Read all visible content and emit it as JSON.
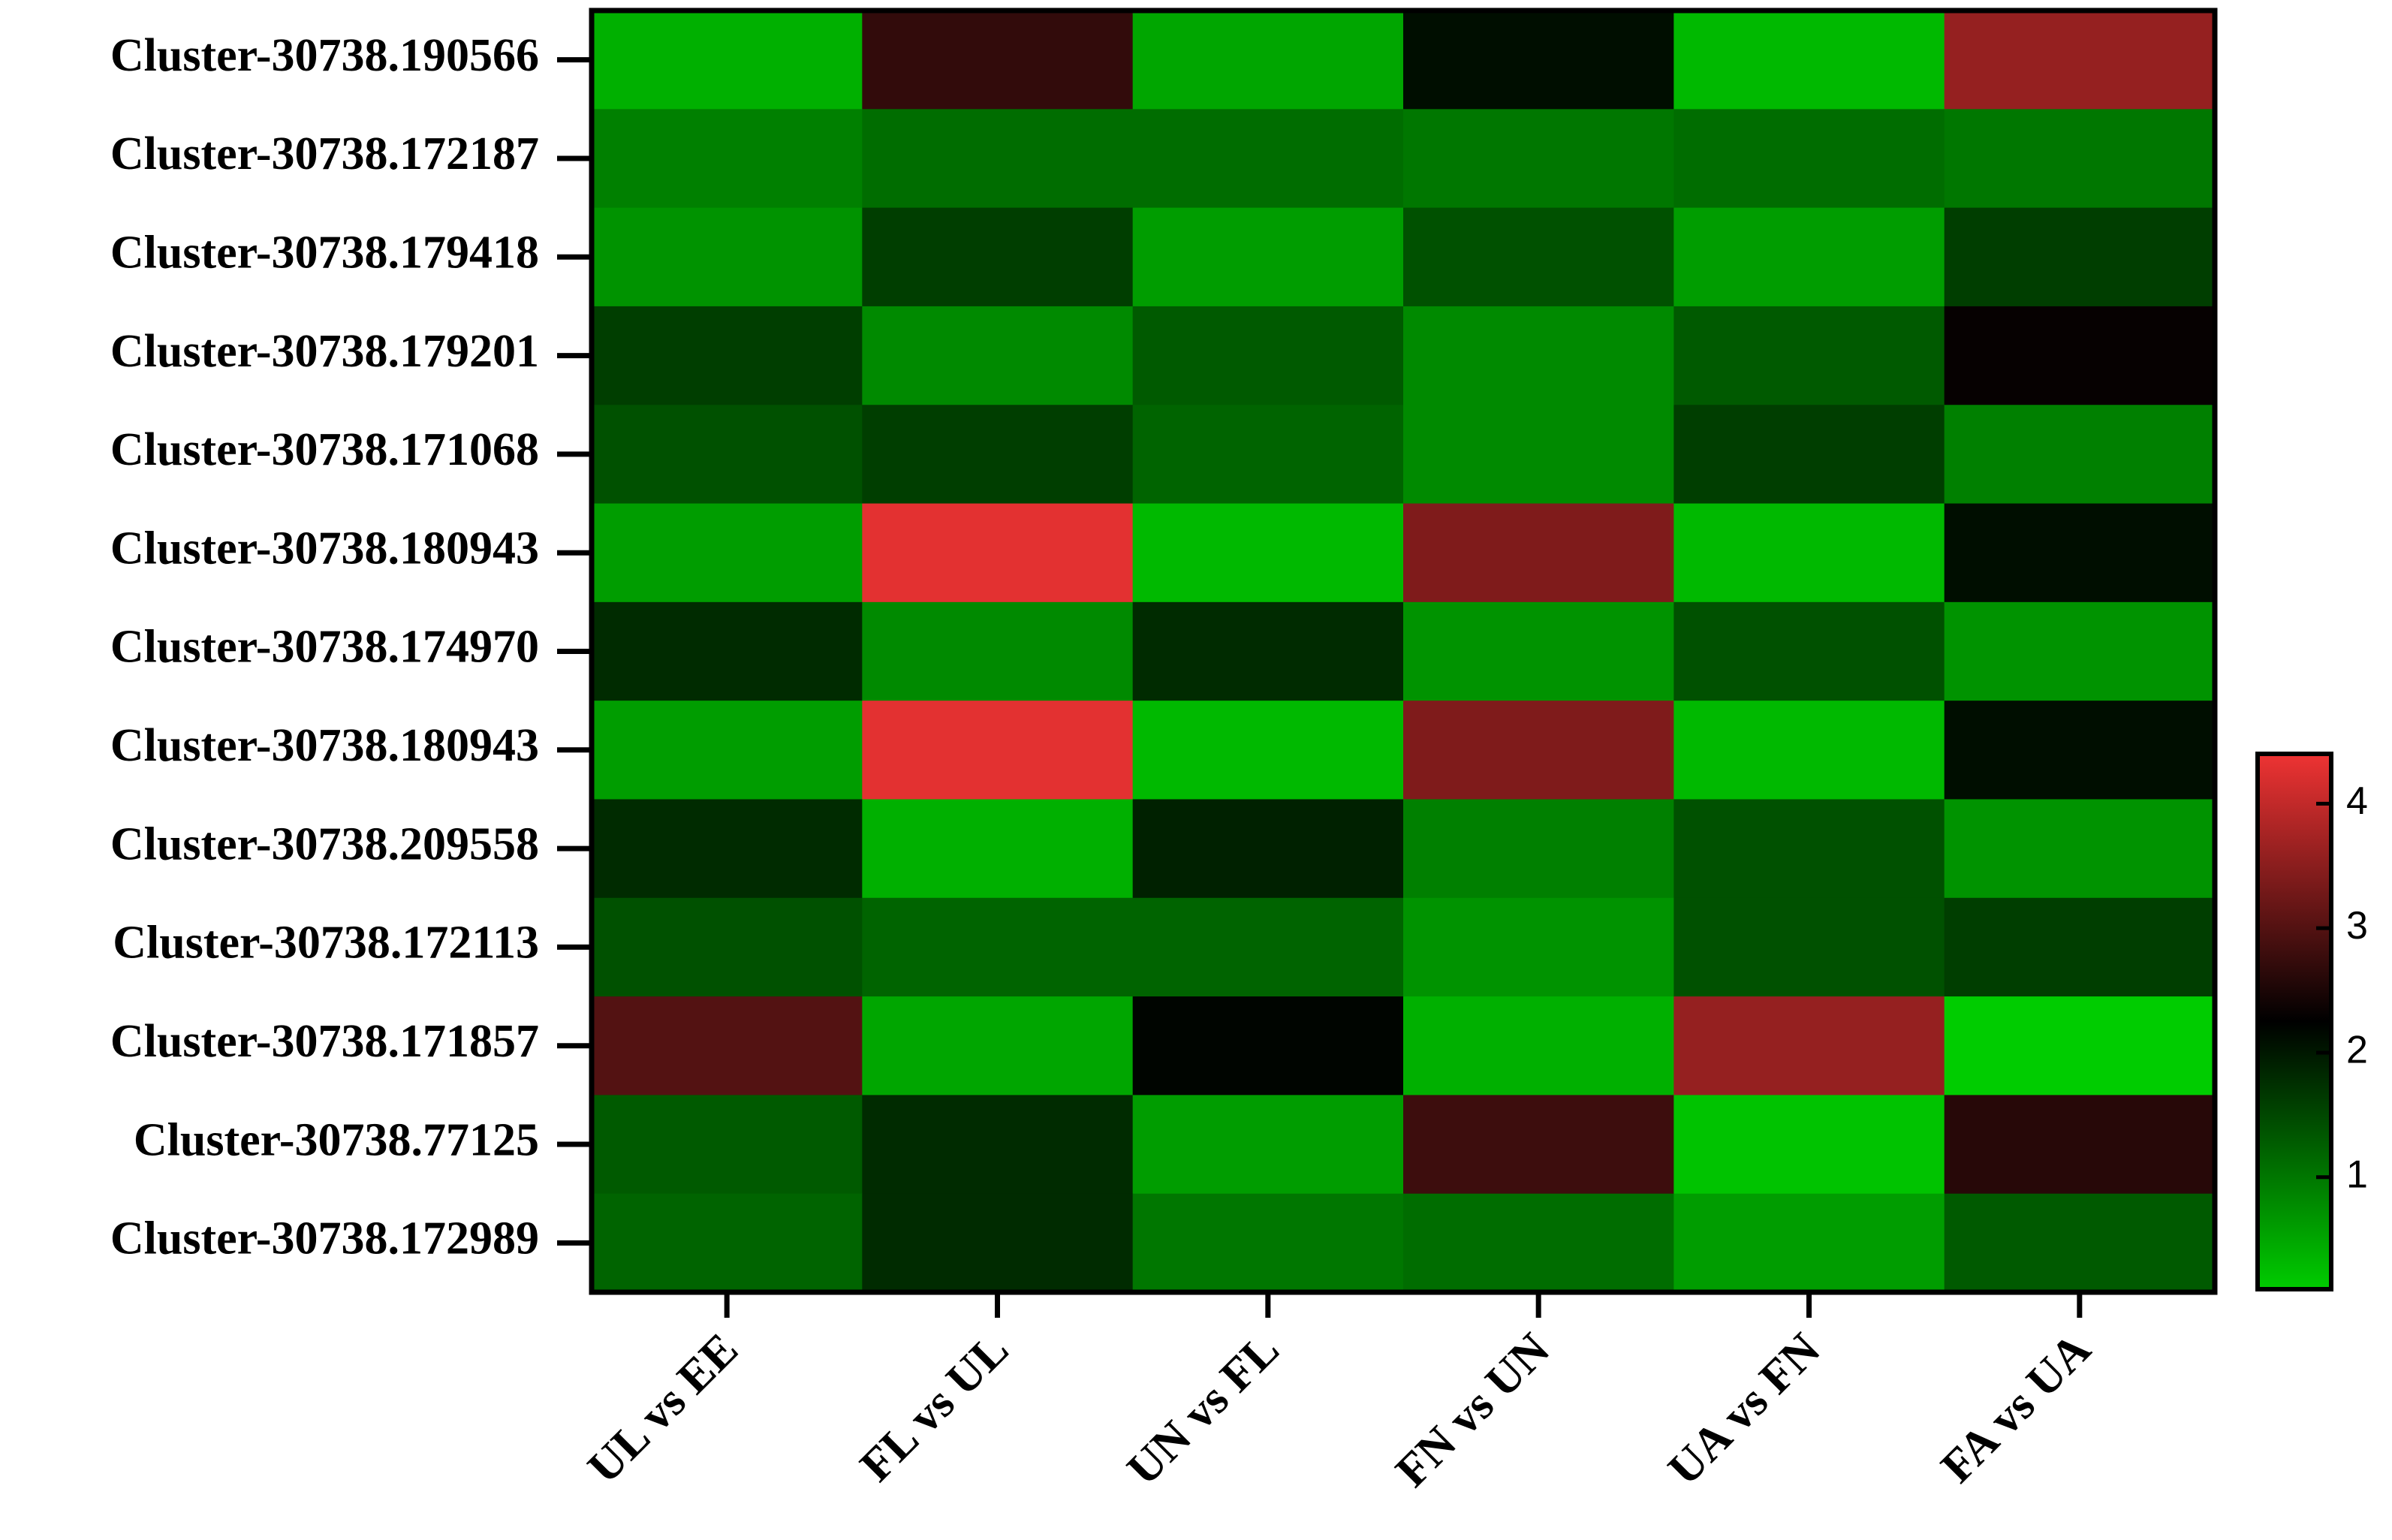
{
  "chart_data": {
    "type": "heatmap",
    "x": [
      "UL vs EE",
      "FL vs UL",
      "UN vs FL",
      "FN vs UN",
      "UA vs FN",
      "FA vs UA"
    ],
    "y": [
      "Cluster-30738.190566",
      "Cluster-30738.172187",
      "Cluster-30738.179418",
      "Cluster-30738.179201",
      "Cluster-30738.171068",
      "Cluster-30738.180943",
      "Cluster-30738.174970",
      "Cluster-30738.180943",
      "Cluster-30738.209558",
      "Cluster-30738.172113",
      "Cluster-30738.171857",
      "Cluster-30738.77125",
      "Cluster-30738.172989"
    ],
    "values": [
      [
        0.4,
        2.7,
        0.5,
        2.1,
        0.3,
        3.6
      ],
      [
        0.9,
        1.1,
        1.1,
        1.0,
        1.1,
        1.0
      ],
      [
        0.7,
        1.6,
        0.6,
        1.4,
        0.6,
        1.6
      ],
      [
        1.6,
        0.8,
        1.3,
        0.8,
        1.3,
        2.3
      ],
      [
        1.4,
        1.6,
        1.2,
        0.8,
        1.6,
        0.9
      ],
      [
        0.6,
        4.3,
        0.3,
        3.4,
        0.3,
        2.1
      ],
      [
        1.8,
        0.8,
        1.8,
        0.7,
        1.4,
        0.7
      ],
      [
        0.6,
        4.3,
        0.3,
        3.4,
        0.3,
        2.1
      ],
      [
        1.8,
        0.4,
        1.9,
        0.9,
        1.4,
        0.7
      ],
      [
        1.4,
        1.2,
        1.2,
        0.7,
        1.4,
        1.6
      ],
      [
        3.0,
        0.5,
        2.2,
        0.4,
        3.6,
        0.1
      ],
      [
        1.3,
        1.8,
        0.6,
        2.8,
        0.2,
        2.6
      ],
      [
        1.2,
        1.8,
        1.0,
        1.1,
        0.6,
        1.3
      ]
    ],
    "colors": [
      "#00cc00",
      "#000000",
      "#ee3333"
    ],
    "zlim": [
      0.1,
      4.4
    ],
    "zticks": [
      1,
      2,
      3,
      4
    ]
  }
}
